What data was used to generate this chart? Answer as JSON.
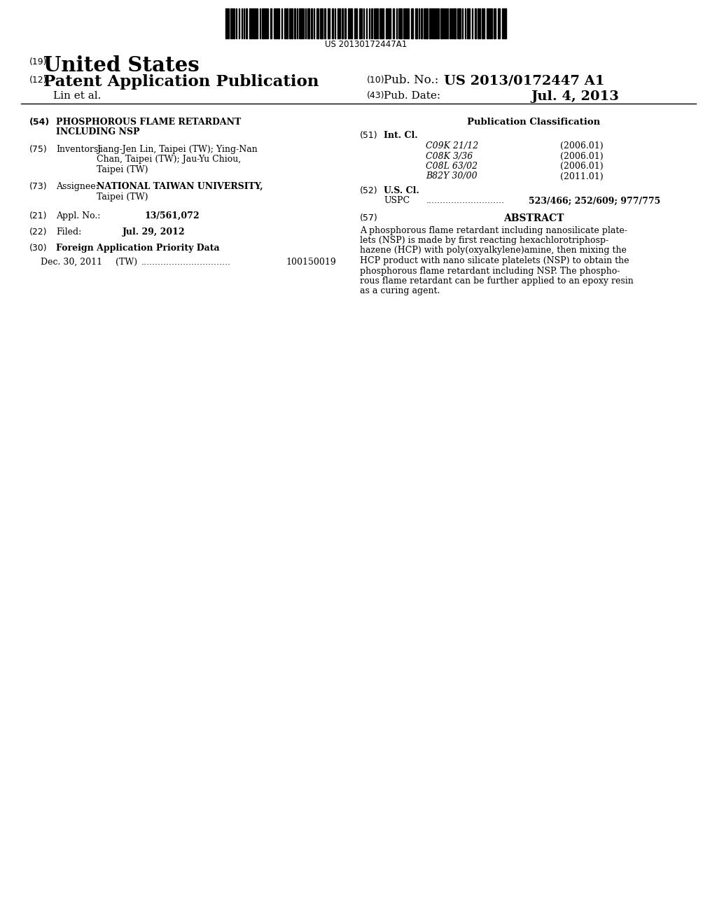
{
  "background_color": "#ffffff",
  "barcode_text": "US 20130172447A1",
  "patent_number_label": "(19)",
  "patent_number_text": "United States",
  "pub_type_label": "(12)",
  "pub_type_text": "Patent Application Publication",
  "pub_no_label": "(10)",
  "pub_no_text": "Pub. No.: US 2013/0172447 A1",
  "authors_label": "Lin et al.",
  "pub_date_label": "(43)",
  "pub_date_key": "Pub. Date:",
  "pub_date_value": "Jul. 4, 2013",
  "title_label": "(54)",
  "title_line1": "PHOSPHOROUS FLAME RETARDANT",
  "title_line2": "INCLUDING NSP",
  "inventors_label": "(75)",
  "inventors_key": "Inventors:",
  "inventors_value_line1": "Jiang-Jen Lin, Taipei (TW); Ying-Nan",
  "inventors_value_line2": "Chan, Taipei (TW); Jau-Yu Chiou,",
  "inventors_value_line3": "Taipei (TW)",
  "assignee_label": "(73)",
  "assignee_key": "Assignee:",
  "assignee_value_line1": "NATIONAL TAIWAN UNIVERSITY,",
  "assignee_value_line2": "Taipei (TW)",
  "appl_label": "(21)",
  "appl_key": "Appl. No.:",
  "appl_value": "13/561,072",
  "filed_label": "(22)",
  "filed_key": "Filed:",
  "filed_value": "Jul. 29, 2012",
  "foreign_label": "(30)",
  "foreign_key": "Foreign Application Priority Data",
  "foreign_date": "Dec. 30, 2011",
  "foreign_country": "(TW)",
  "foreign_dots": "................................",
  "foreign_number": "100150019",
  "pub_class_header": "Publication Classification",
  "int_cl_label": "(51)",
  "int_cl_key": "Int. Cl.",
  "int_cl_entries": [
    [
      "C09K 21/12",
      "(2006.01)"
    ],
    [
      "C08K 3/36",
      "(2006.01)"
    ],
    [
      "C08L 63/02",
      "(2006.01)"
    ],
    [
      "B82Y 30/00",
      "(2011.01)"
    ]
  ],
  "us_cl_label": "(52)",
  "us_cl_key": "U.S. Cl.",
  "uspc_key": "USPC",
  "uspc_dots": "............................",
  "uspc_value": "523/466; 252/609; 977/775",
  "abstract_label": "(57)",
  "abstract_title": "ABSTRACT",
  "abstract_lines": [
    "A phosphorous flame retardant including nanosilicate plate-",
    "lets (NSP) is made by first reacting hexachlorotriphosp-",
    "hazene (HCP) with poly(oxyalkylene)amine, then mixing the",
    "HCP product with nano silicate platelets (NSP) to obtain the",
    "phosphorous flame retardant including NSP. The phospho-",
    "rous flame retardant can be further applied to an epoxy resin",
    "as a curing agent."
  ]
}
